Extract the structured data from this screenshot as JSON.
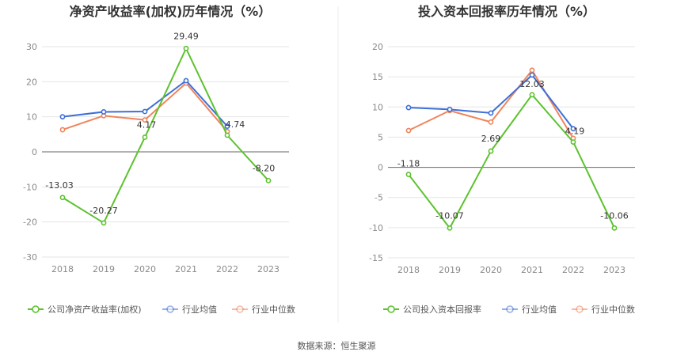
{
  "source_label": "数据来源：恒生聚源",
  "chart_data": [
    {
      "type": "line",
      "title": "净资产收益率(加权)历年情况（%）",
      "categories": [
        "2018",
        "2019",
        "2020",
        "2021",
        "2022",
        "2023"
      ],
      "ylim": [
        -30,
        30
      ],
      "yticks": [
        -30,
        -20,
        -10,
        0,
        10,
        20,
        30
      ],
      "grid": true,
      "legend_position": "bottom",
      "series": [
        {
          "name": "公司净资产收益率(加权)",
          "color": "#5cc22e",
          "values": [
            -13.03,
            -20.27,
            4.17,
            29.49,
            4.74,
            -8.2
          ],
          "labels": [
            "-13.03",
            "-20.27",
            "4.17",
            "29.49",
            "4.74",
            "-8.20"
          ]
        },
        {
          "name": "行业均值",
          "color": "#3d6fd8",
          "values": [
            10.0,
            11.4,
            11.5,
            20.3,
            7.3,
            null
          ]
        },
        {
          "name": "行业中位数",
          "color": "#f0855c",
          "values": [
            6.3,
            10.3,
            9.1,
            19.6,
            5.8,
            null
          ]
        }
      ]
    },
    {
      "type": "line",
      "title": "投入资本回报率历年情况（%）",
      "categories": [
        "2018",
        "2019",
        "2020",
        "2021",
        "2022",
        "2023"
      ],
      "ylim": [
        -15,
        20
      ],
      "yticks": [
        -15,
        -10,
        -5,
        0,
        5,
        10,
        15,
        20
      ],
      "grid": true,
      "legend_position": "bottom",
      "series": [
        {
          "name": "公司投入资本回报率",
          "color": "#5cc22e",
          "values": [
            -1.18,
            -10.07,
            2.69,
            12.03,
            4.19,
            -10.06
          ],
          "labels": [
            "-1.18",
            "-10.07",
            "2.69",
            "12.03",
            "4.19",
            "-10.06"
          ]
        },
        {
          "name": "行业均值",
          "color": "#3d6fd8",
          "values": [
            9.9,
            9.6,
            9.0,
            15.3,
            6.4,
            null
          ]
        },
        {
          "name": "行业中位数",
          "color": "#f0855c",
          "values": [
            6.1,
            9.4,
            7.5,
            16.1,
            4.8,
            null
          ]
        }
      ]
    }
  ]
}
